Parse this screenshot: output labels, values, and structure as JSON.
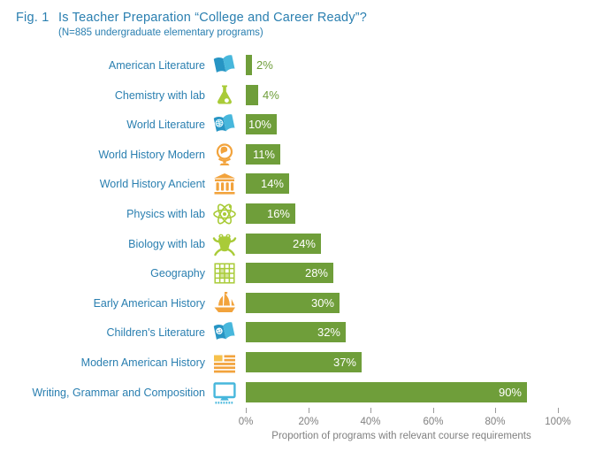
{
  "title": {
    "fig_number": "Fig. 1",
    "text": "Is Teacher Preparation “College and Career Ready”?",
    "subtitle": "(N=885 undergraduate elementary programs)"
  },
  "colors": {
    "title_blue": "#2a7fb0",
    "bar_green": "#6f9e3a",
    "icon_lime": "#a9cb38",
    "icon_orange": "#f2a33c",
    "icon_orange_light": "#f6c14c",
    "icon_blue": "#47b7dc",
    "icon_blue_dark": "#2795c4",
    "axis_gray": "#808080",
    "tick_gray": "#9a9a9a",
    "background": "#ffffff"
  },
  "chart_data": {
    "type": "bar",
    "orientation": "horizontal",
    "title": "Is Teacher Preparation “College and Career Ready”?",
    "subtitle": "(N=885 undergraduate elementary programs)",
    "categories": [
      "American Literature",
      "Chemistry with lab",
      "World Literature",
      "World History Modern",
      "World History Ancient",
      "Physics with lab",
      "Biology with lab",
      "Geography",
      "Early American History",
      "Children's Literature",
      "Modern American History",
      "Writing, Grammar and Composition"
    ],
    "values": [
      2,
      4,
      10,
      11,
      14,
      16,
      24,
      28,
      30,
      32,
      37,
      90
    ],
    "value_labels": [
      "2%",
      "4%",
      "10%",
      "11%",
      "14%",
      "16%",
      "24%",
      "28%",
      "30%",
      "32%",
      "37%",
      "90%"
    ],
    "icons": [
      "open-book",
      "flask",
      "globe-book",
      "desk-globe",
      "temple",
      "atom",
      "frog",
      "map-grid",
      "ship",
      "smiley-book",
      "flag",
      "monitor"
    ],
    "xlabel": "Proportion of programs with relevant course requirements",
    "xlim": [
      0,
      100
    ],
    "xticks": [
      "0%",
      "20%",
      "40%",
      "60%",
      "80%",
      "100%"
    ],
    "grid": false,
    "legend": false,
    "bar_color": "#6f9e3a"
  }
}
